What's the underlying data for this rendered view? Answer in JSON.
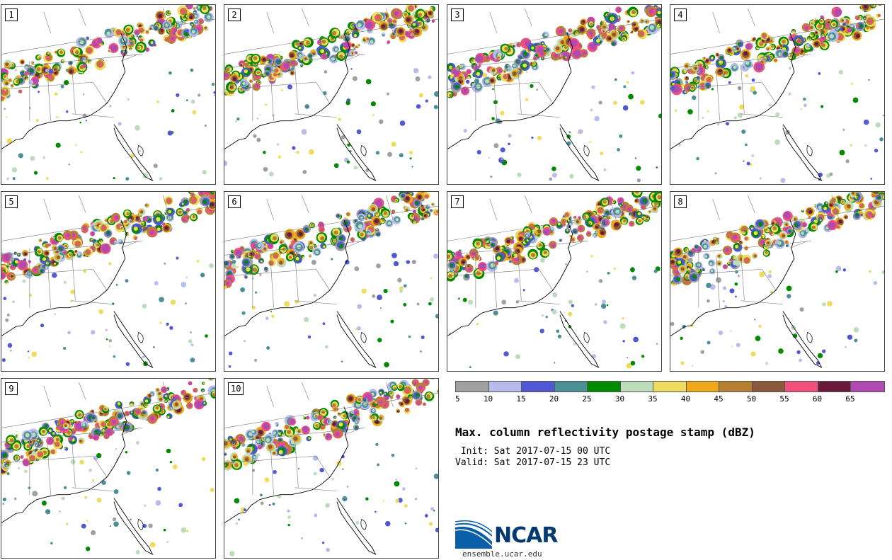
{
  "panels": [
    {
      "label": "1",
      "seed": 11
    },
    {
      "label": "2",
      "seed": 23
    },
    {
      "label": "3",
      "seed": 37
    },
    {
      "label": "4",
      "seed": 41
    },
    {
      "label": "5",
      "seed": 53
    },
    {
      "label": "6",
      "seed": 67
    },
    {
      "label": "7",
      "seed": 71
    },
    {
      "label": "8",
      "seed": 83
    },
    {
      "label": "9",
      "seed": 97
    },
    {
      "label": "10",
      "seed": 101
    }
  ],
  "legend": {
    "colors": [
      "#a0a0a0",
      "#b7bcec",
      "#5257d6",
      "#4a9096",
      "#008a00",
      "#bcdcbc",
      "#efdb5d",
      "#eea91a",
      "#b68032",
      "#8b5a3c",
      "#f0507a",
      "#6a1a3a",
      "#b04ab0"
    ],
    "ticks": [
      "5",
      "10",
      "15",
      "20",
      "25",
      "30",
      "35",
      "40",
      "45",
      "50",
      "55",
      "60",
      "65"
    ]
  },
  "title": "Max. column reflectivity postage stamp (dBZ)",
  "init": " Init: Sat 2017-07-15 00 UTC",
  "valid": "Valid: Sat 2017-07-15 23 UTC",
  "logo": {
    "name": "NCAR",
    "url": "ensemble.ucar.edu"
  }
}
